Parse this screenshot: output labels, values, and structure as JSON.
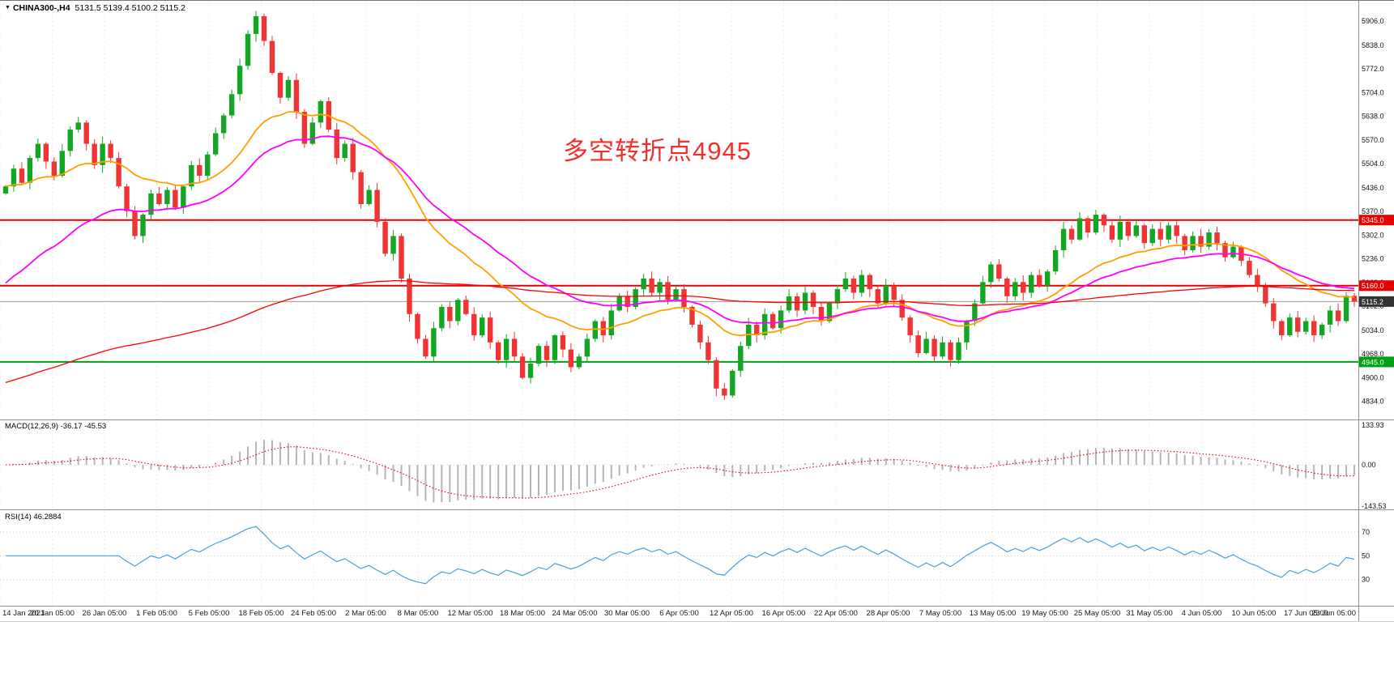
{
  "header": {
    "marker": "▼",
    "symbol": "CHINA300-,H4",
    "ohlc_text": "5131.5 5139.4 5100.2 5115.2"
  },
  "annotation": {
    "text": "多空转折点4945"
  },
  "macd_panel": {
    "header": "MACD(12,26,9) -36.17 -45.53",
    "tick_labels": [
      "133.93",
      "0.00",
      "-143.53"
    ],
    "tick_values": [
      133.93,
      0,
      -143.53
    ]
  },
  "rsi_panel": {
    "header": "RSI(14) 46.2884",
    "tick_labels": [
      "70",
      "50",
      "30"
    ],
    "tick_values": [
      70,
      50,
      30
    ]
  },
  "price_axis": {
    "labels": [
      "5906.0",
      "5838.0",
      "5772.0",
      "5704.0",
      "5638.0",
      "5570.0",
      "5504.0",
      "5436.0",
      "5370.0",
      "5302.0",
      "5236.0",
      "5168.0",
      "5102.0",
      "5034.0",
      "4968.0",
      "4900.0",
      "4834.0"
    ],
    "values": [
      5906,
      5838,
      5772,
      5704,
      5638,
      5570,
      5504,
      5436,
      5370,
      5302,
      5236,
      5168,
      5102,
      5034,
      4968,
      4900,
      4834
    ]
  },
  "time_axis": {
    "labels": [
      "14 Jan 2021",
      "20 Jan 05:00",
      "26 Jan 05:00",
      "1 Feb 05:00",
      "5 Feb 05:00",
      "18 Feb 05:00",
      "24 Feb 05:00",
      "2 Mar 05:00",
      "8 Mar 05:00",
      "12 Mar 05:00",
      "18 Mar 05:00",
      "24 Mar 05:00",
      "30 Mar 05:00",
      "6 Apr 05:00",
      "12 Apr 05:00",
      "16 Apr 05:00",
      "22 Apr 05:00",
      "28 Apr 05:00",
      "7 May 05:00",
      "13 May 05:00",
      "19 May 05:00",
      "25 May 05:00",
      "31 May 05:00",
      "4 Jun 05:00",
      "10 Jun 05:00",
      "17 Jun 05:00",
      "23 Jun 05:00"
    ]
  },
  "levels": [
    {
      "label": "5345.0",
      "value": 5345.0,
      "style": "hline",
      "color_key": "level_red"
    },
    {
      "label": "5160.0",
      "value": 5160.0,
      "style": "hline",
      "color_key": "level_red"
    },
    {
      "label": "5115.2",
      "value": 5115.2,
      "style": "price_line",
      "color_key": "price_badge"
    },
    {
      "label": "4945.0",
      "value": 4945.0,
      "style": "hline",
      "color_key": "level_green"
    }
  ],
  "colors": {
    "up": "#12a622",
    "down": "#ef3434",
    "ma_fast": "#ffa000",
    "ma_medium": "#ff00ff",
    "ma_slow": "#ff0000",
    "macd_hist": "#b5b5b5",
    "macd_signal": "#e00000",
    "rsi": "#4aa0d8",
    "level_red": "#e60000",
    "level_green": "#00a014",
    "price_line": "#9a9a9a",
    "price_badge": "#333333",
    "grid": "#ececec",
    "separator": "#909090",
    "axis_text": "#111111",
    "annotation": "#f22f2f"
  },
  "chart_data": {
    "type": "candlestick",
    "title": "CHINA300-,H4",
    "timeframe": "H4",
    "ylim": [
      4834,
      5906
    ],
    "x_first": "14 Jan 2021",
    "x_last": "23 Jun 05:00",
    "closes": [
      5440,
      5490,
      5450,
      5520,
      5560,
      5510,
      5470,
      5540,
      5600,
      5620,
      5560,
      5500,
      5560,
      5520,
      5440,
      5370,
      5300,
      5360,
      5420,
      5390,
      5430,
      5380,
      5440,
      5500,
      5470,
      5530,
      5590,
      5640,
      5700,
      5780,
      5870,
      5920,
      5850,
      5760,
      5690,
      5740,
      5650,
      5560,
      5620,
      5680,
      5600,
      5520,
      5560,
      5480,
      5390,
      5430,
      5340,
      5250,
      5300,
      5180,
      5080,
      5010,
      4960,
      5040,
      5100,
      5060,
      5120,
      5080,
      5020,
      5070,
      5000,
      4950,
      5010,
      4960,
      4900,
      4940,
      4990,
      4950,
      5020,
      4980,
      4930,
      4960,
      5010,
      5060,
      5020,
      5090,
      5130,
      5100,
      5150,
      5180,
      5140,
      5170,
      5120,
      5150,
      5100,
      5050,
      5000,
      4950,
      4870,
      4850,
      4920,
      4990,
      5050,
      5020,
      5080,
      5040,
      5090,
      5130,
      5090,
      5140,
      5100,
      5060,
      5110,
      5150,
      5180,
      5140,
      5190,
      5150,
      5110,
      5160,
      5120,
      5070,
      5020,
      4970,
      5010,
      4960,
      5000,
      4950,
      5000,
      5060,
      5110,
      5170,
      5220,
      5180,
      5130,
      5170,
      5140,
      5190,
      5160,
      5200,
      5260,
      5320,
      5290,
      5350,
      5310,
      5360,
      5330,
      5290,
      5340,
      5300,
      5330,
      5280,
      5320,
      5290,
      5330,
      5300,
      5260,
      5300,
      5270,
      5310,
      5280,
      5240,
      5270,
      5230,
      5190,
      5160,
      5110,
      5060,
      5020,
      5070,
      5030,
      5060,
      5020,
      5050,
      5090,
      5060,
      5131.5,
      5115.2
    ],
    "last_candle": {
      "open": 5131.5,
      "high": 5139.4,
      "low": 5100.2,
      "close": 5115.2
    },
    "peak": {
      "index": 31,
      "high": 5935
    },
    "trough": {
      "index": 89,
      "low": 4838
    },
    "moving_averages": [
      {
        "name": "ema-fast",
        "color_key": "ma_fast",
        "alpha": 0.095,
        "seed": null
      },
      {
        "name": "ema-medium",
        "color_key": "ma_medium",
        "alpha": 0.06,
        "seed": 5150
      },
      {
        "name": "ema-slow",
        "color_key": "ma_slow",
        "alpha": 0.012,
        "seed": 4880
      }
    ],
    "indicators": {
      "macd": {
        "fast": 12,
        "slow": 26,
        "signal": 9,
        "display_values": [
          -36.17,
          -45.53
        ]
      },
      "rsi": {
        "period": 14,
        "display_value": 46.2884,
        "range": [
          10,
          85
        ]
      }
    }
  }
}
